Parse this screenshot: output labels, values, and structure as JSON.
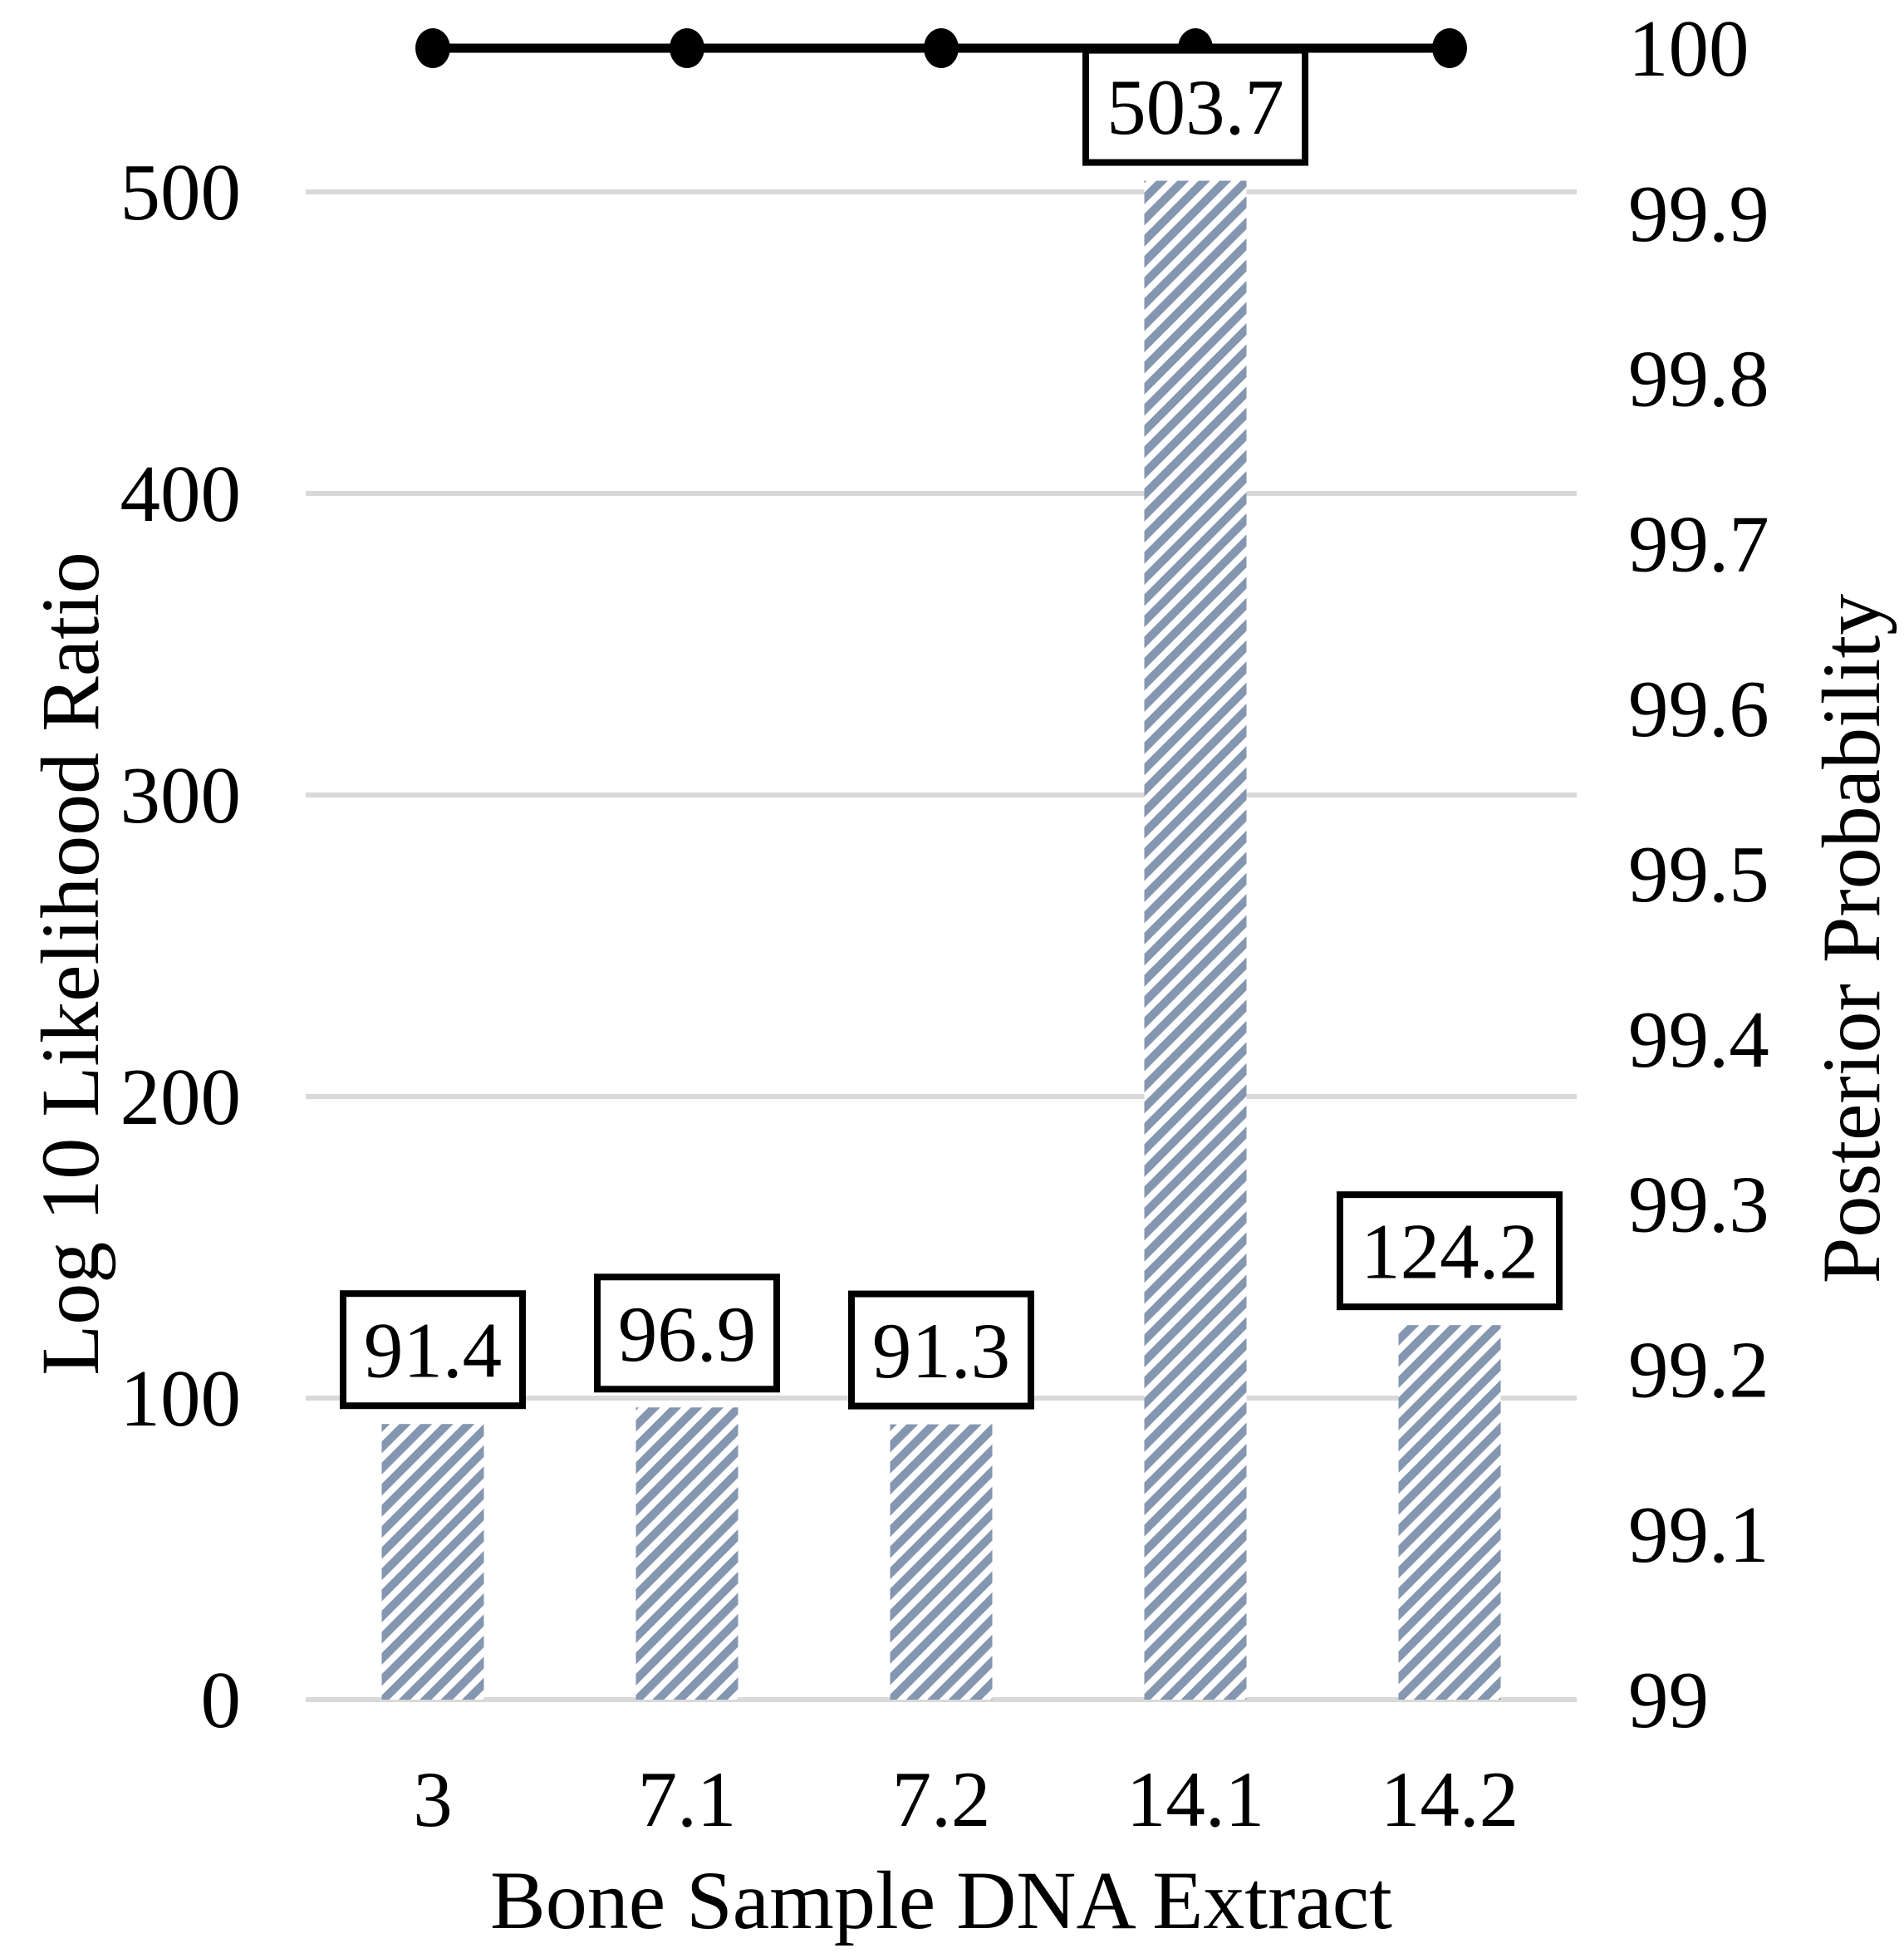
{
  "chart_data": {
    "type": "bar",
    "subtype": "bar-line-combo",
    "categories": [
      "3",
      "7.1",
      "7.2",
      "14.1",
      "14.2"
    ],
    "series": [
      {
        "name": "Log 10 Likelihood Ratio",
        "type": "bar",
        "axis": "left",
        "values": [
          91.4,
          96.9,
          91.3,
          503.7,
          124.2
        ],
        "data_labels": [
          "91.4",
          "96.9",
          "91.3",
          "503.7",
          "124.2"
        ],
        "style": "diagonal-hatch"
      },
      {
        "name": "Posterior Probability",
        "type": "line",
        "axis": "right",
        "values": [
          100,
          100,
          100,
          100,
          100
        ],
        "marker": "circle"
      }
    ],
    "x_axis": {
      "title": "Bone Sample DNA Extract",
      "tick_labels": [
        "3",
        "7.1",
        "7.2",
        "14.1",
        "14.2"
      ]
    },
    "left_axis": {
      "title": "Log 10 Likelihood Ratio",
      "min": 0,
      "max": 500,
      "tick_step": 100,
      "tick_labels": [
        "0",
        "100",
        "200",
        "300",
        "400",
        "500"
      ]
    },
    "right_axis": {
      "title": "Posterior Probability",
      "min": 99,
      "max": 100,
      "tick_step": 0.1,
      "tick_labels": [
        "99",
        "99.1",
        "99.2",
        "99.3",
        "99.4",
        "99.5",
        "99.6",
        "99.7",
        "99.8",
        "99.9",
        "100"
      ]
    },
    "grid": true,
    "legend": "none",
    "colors": {
      "bar_hatch": "#8496B0",
      "bar_background": "#FFFFFF",
      "gridline": "#D9D9D9",
      "line_series": "#000000",
      "data_label_border": "#000000",
      "data_label_fill": "#FFFFFF",
      "text": "#000000",
      "background": "#FFFFFF"
    }
  }
}
